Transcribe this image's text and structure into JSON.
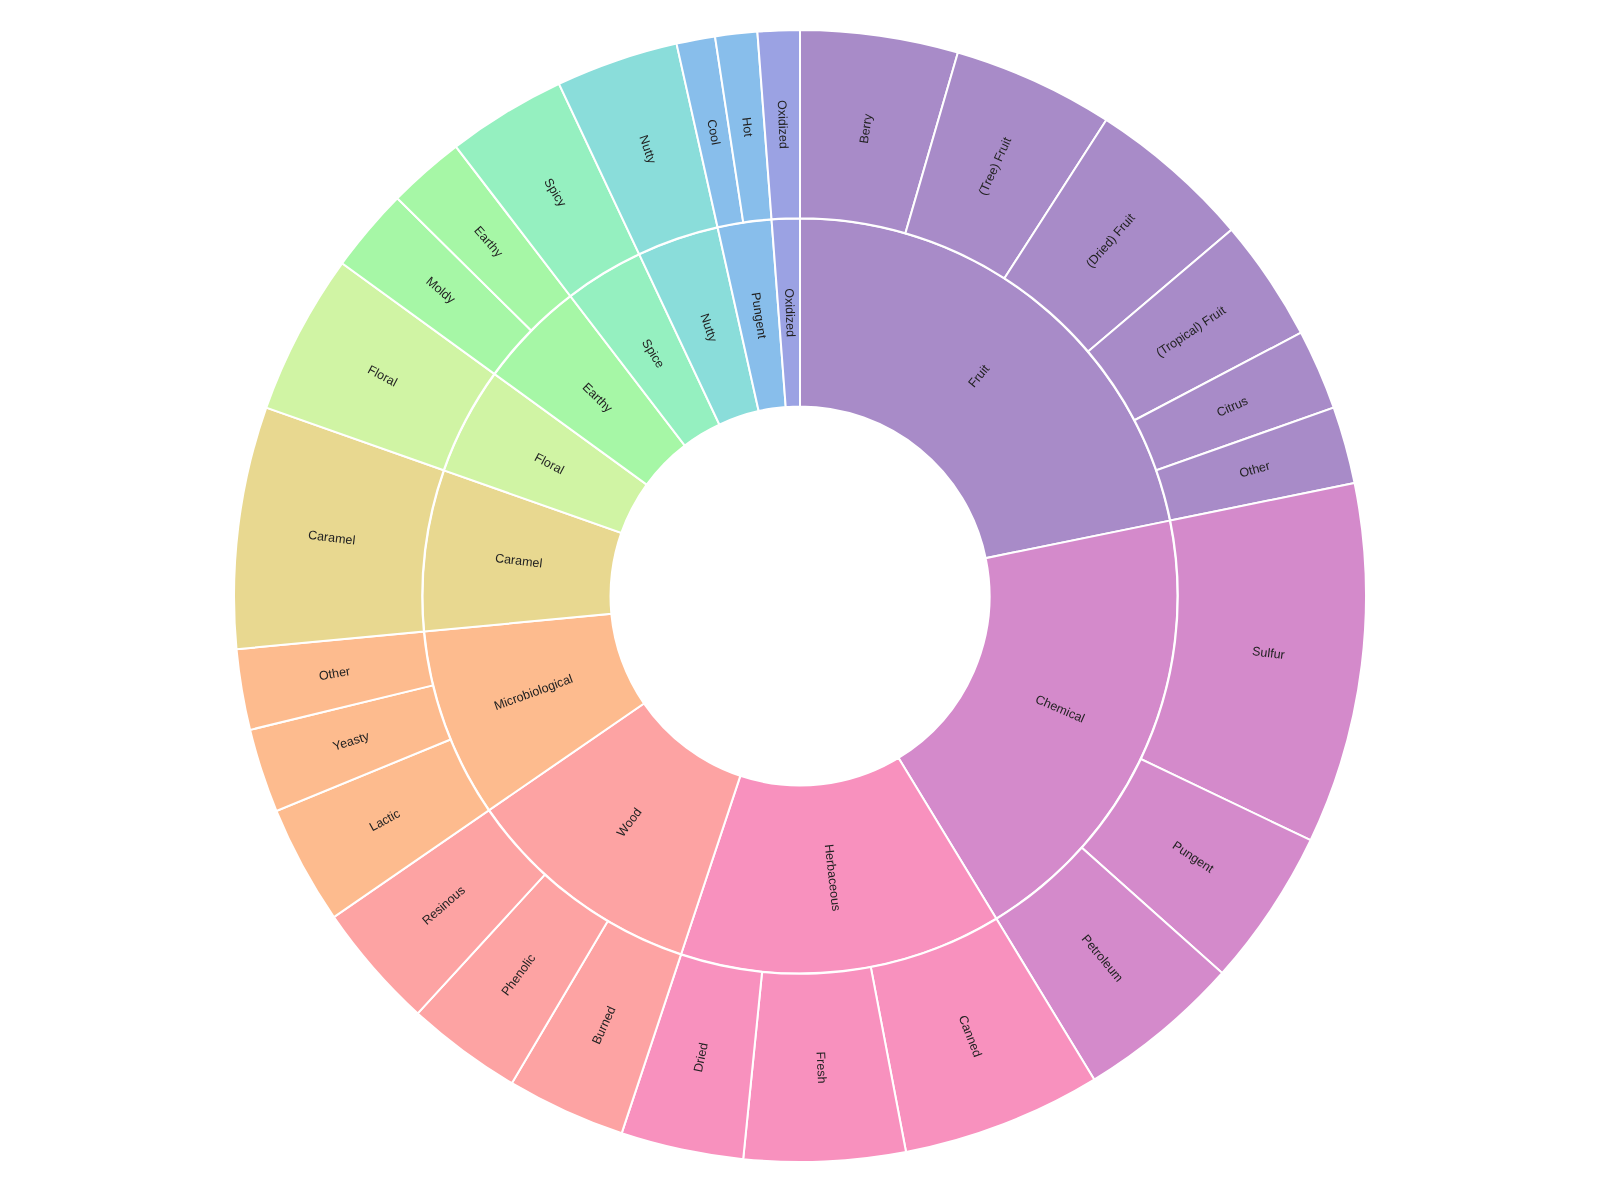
{
  "chart_data": [
    {
      "type": "donut",
      "categories": [
        "Fruit",
        "Chemical",
        "Herbaceous",
        "Wood",
        "Microbiological",
        "Caramel",
        "Floral",
        "Earthy",
        "Spice",
        "Nutty",
        "Pungent",
        "Oxidized"
      ],
      "values": [
        21.8,
        19.5,
        13.8,
        10.3,
        8.1,
        6.9,
        4.6,
        4.6,
        3.4,
        3.5,
        2.3,
        1.2
      ],
      "colors": [
        "#a88bc8",
        "#d48acb",
        "#f891be",
        "#fda3a3",
        "#fdbb8e",
        "#e8d890",
        "#d0f4a4",
        "#a6f7a6",
        "#95f0c0",
        "#8addda",
        "#88beeb",
        "#9ba2e3"
      ]
    },
    {
      "type": "donut",
      "categories": [
        "Berry",
        "(Tree) Fruit",
        "(Dried) Fruit",
        "(Tropical) Fruit",
        "Citrus",
        "Other",
        "Sulfur",
        "Pungent",
        "Petroleum",
        "Canned",
        "Fresh",
        "Dried",
        "Burned",
        "Phenolic",
        "Resinous",
        "Lactic",
        "Yeasty",
        "Other",
        "Caramel",
        "Floral",
        "Moldy",
        "Earthy",
        "Spicy",
        "Nutty",
        "Cool",
        "Hot",
        "Oxidized"
      ],
      "values": [
        4.5,
        4.6,
        4.7,
        3.5,
        2.3,
        2.2,
        10.3,
        4.5,
        4.7,
        5.7,
        4.6,
        3.5,
        3.4,
        3.3,
        3.6,
        3.4,
        2.4,
        2.3,
        6.9,
        4.6,
        2.4,
        2.2,
        3.4,
        3.5,
        1.1,
        1.2,
        1.2
      ],
      "colors": [
        "#a88bc8",
        "#a88bc8",
        "#a88bc8",
        "#a88bc8",
        "#a88bc8",
        "#a88bc8",
        "#d48acb",
        "#d48acb",
        "#d48acb",
        "#f891be",
        "#f891be",
        "#f891be",
        "#fda3a3",
        "#fda3a3",
        "#fda3a3",
        "#fdbb8e",
        "#fdbb8e",
        "#fdbb8e",
        "#e8d890",
        "#d0f4a4",
        "#a6f7a6",
        "#a6f7a6",
        "#95f0c0",
        "#8addda",
        "#88beeb",
        "#88beeb",
        "#9ba2e3"
      ]
    }
  ]
}
